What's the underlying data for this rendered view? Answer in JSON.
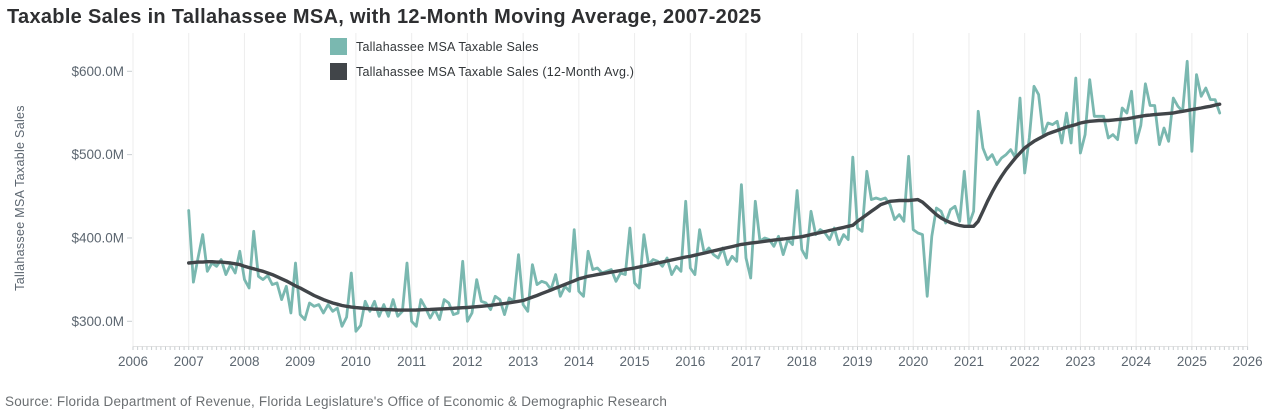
{
  "title": "Taxable Sales in Tallahassee MSA, with 12-Month Moving Average, 2007-2025",
  "source": "Source: Florida Department of Revenue, Florida Legislature's Office of Economic & Demographic Research",
  "colors": {
    "sales_line": "#7ab8b0",
    "avg_line": "#414549",
    "gridline": "#ededed",
    "baseline": "#e3e3e3",
    "tick": "#c9ced1",
    "axis_text": "#5c6670",
    "title_text": "#2e2f31",
    "source_text": "#6b6f72",
    "background": "#ffffff"
  },
  "legend": {
    "items": [
      {
        "label": "Tallahassee MSA Taxable Sales",
        "color": "#7ab8b0"
      },
      {
        "label": "Tallahassee MSA Taxable Sales (12-Month Avg.)",
        "color": "#414549"
      }
    ]
  },
  "y_axis": {
    "label": "Tallahassee MSA Taxable Sales",
    "ticks": [
      {
        "value": 600,
        "label": "$600.0M"
      },
      {
        "value": 500,
        "label": "$500.0M"
      },
      {
        "value": 400,
        "label": "$400.0M"
      },
      {
        "value": 300,
        "label": "$300.0M"
      }
    ]
  },
  "x_axis": {
    "ticks": [
      "2006",
      "2007",
      "2008",
      "2009",
      "2010",
      "2011",
      "2012",
      "2013",
      "2014",
      "2015",
      "2016",
      "2017",
      "2018",
      "2019",
      "2020",
      "2021",
      "2022",
      "2023",
      "2024",
      "2025",
      "2026"
    ]
  },
  "chart_data": {
    "type": "line",
    "x_unit": "month",
    "x_start": "2007-01",
    "x_end": "2025-07",
    "xlim": [
      2006,
      2026
    ],
    "ylim_millions": [
      280,
      620
    ],
    "y_ticks_millions": [
      300,
      400,
      500,
      600
    ],
    "x_tick_years": [
      2006,
      2007,
      2008,
      2009,
      2010,
      2011,
      2012,
      2013,
      2014,
      2015,
      2016,
      2017,
      2018,
      2019,
      2020,
      2021,
      2022,
      2023,
      2024,
      2025,
      2026
    ],
    "grid": "vertical-years-only",
    "legend_position": "top-center",
    "series": [
      {
        "name": "Tallahassee MSA Taxable Sales",
        "color": "#7ab8b0",
        "values_millions": [
          433,
          347,
          376,
          404,
          360,
          370,
          366,
          374,
          356,
          368,
          358,
          384,
          350,
          340,
          408,
          354,
          350,
          355,
          344,
          346,
          326,
          342,
          310,
          370,
          308,
          302,
          322,
          318,
          320,
          310,
          320,
          312,
          316,
          294,
          305,
          358,
          288,
          295,
          324,
          312,
          324,
          306,
          320,
          306,
          326,
          306,
          312,
          370,
          300,
          294,
          326,
          316,
          304,
          314,
          302,
          326,
          322,
          308,
          310,
          372,
          300,
          310,
          350,
          324,
          322,
          314,
          330,
          326,
          308,
          328,
          324,
          380,
          320,
          312,
          368,
          344,
          348,
          346,
          338,
          356,
          330,
          342,
          336,
          410,
          336,
          330,
          384,
          362,
          364,
          358,
          360,
          362,
          348,
          358,
          356,
          412,
          346,
          340,
          404,
          368,
          374,
          372,
          366,
          376,
          356,
          366,
          360,
          444,
          364,
          356,
          410,
          382,
          388,
          380,
          376,
          388,
          368,
          378,
          372,
          464,
          376,
          352,
          444,
          396,
          400,
          398,
          390,
          402,
          380,
          398,
          392,
          457,
          386,
          376,
          432,
          404,
          410,
          406,
          398,
          412,
          392,
          404,
          398,
          497,
          412,
          408,
          480,
          446,
          448,
          446,
          448,
          440,
          422,
          428,
          420,
          498,
          410,
          406,
          404,
          330,
          402,
          436,
          432,
          418,
          434,
          438,
          420,
          480,
          416,
          432,
          552,
          508,
          494,
          500,
          488,
          496,
          500,
          506,
          496,
          568,
          478,
          520,
          582,
          572,
          524,
          538,
          536,
          540,
          514,
          550,
          514,
          592,
          502,
          524,
          590,
          546,
          546,
          546,
          520,
          524,
          518,
          556,
          550,
          576,
          514,
          535,
          585,
          559,
          559,
          512,
          532,
          516,
          568,
          558,
          552,
          612,
          504,
          596,
          570,
          580,
          566,
          566,
          550
        ]
      },
      {
        "name": "Tallahassee MSA Taxable Sales (12-Month Avg.)",
        "color": "#414549",
        "values_millions": [
          370,
          370.5,
          371,
          371,
          371.5,
          371.5,
          371,
          371,
          370.5,
          370,
          369,
          368,
          366,
          364.5,
          363,
          361.5,
          360,
          358,
          356,
          353.5,
          351,
          348.5,
          345.5,
          342.5,
          340,
          337,
          334,
          331,
          328.5,
          326,
          324,
          322,
          320.5,
          319,
          318,
          317,
          316.5,
          316,
          315.5,
          315,
          314.5,
          314.5,
          314,
          314,
          313.8,
          313.6,
          313.5,
          313.5,
          313.5,
          313.6,
          313.8,
          314,
          314.2,
          314.5,
          314.8,
          315,
          315.3,
          315.6,
          316,
          316.3,
          316.6,
          317,
          317.5,
          318,
          318.6,
          319.2,
          319.9,
          320.6,
          321.4,
          322.2,
          323.1,
          324,
          325,
          327,
          329,
          331,
          333.2,
          335.4,
          337.6,
          339.8,
          342,
          344.2,
          346.4,
          348.6,
          351,
          352.5,
          354,
          355,
          356,
          357,
          358,
          359,
          360,
          361,
          362,
          363,
          364,
          365.2,
          366.4,
          367.6,
          368.8,
          370,
          371.2,
          372.4,
          373.6,
          374.8,
          376,
          377.2,
          378,
          379.3,
          380.6,
          381.9,
          383.2,
          384.5,
          385.8,
          387.1,
          388.4,
          389.7,
          391,
          392.3,
          393,
          393.8,
          394.5,
          395.2,
          396,
          396.7,
          397.4,
          398.1,
          398.8,
          399.5,
          400.2,
          400.8,
          401.5,
          402.7,
          404,
          405.2,
          406.5,
          407.7,
          409,
          410.2,
          411.5,
          412.7,
          414,
          415.2,
          420,
          424,
          428,
          432,
          436,
          440,
          442,
          444,
          444.5,
          445,
          445,
          445,
          445.5,
          446,
          443,
          438,
          433,
          428,
          424,
          421,
          418.5,
          416.5,
          415,
          414,
          414,
          414,
          420,
          432,
          444,
          455,
          465,
          474,
          482,
          489,
          496,
          502,
          508,
          512,
          516,
          519,
          522,
          525,
          527,
          529,
          531,
          533,
          534.5,
          536,
          538,
          539,
          540,
          540.5,
          541,
          541,
          541,
          541.5,
          542,
          542.5,
          543,
          544,
          545,
          546,
          547,
          547.5,
          548,
          548.5,
          549,
          549.5,
          550,
          551,
          552,
          553,
          554,
          555,
          556,
          557,
          558,
          559.5,
          560.5
        ]
      }
    ]
  }
}
